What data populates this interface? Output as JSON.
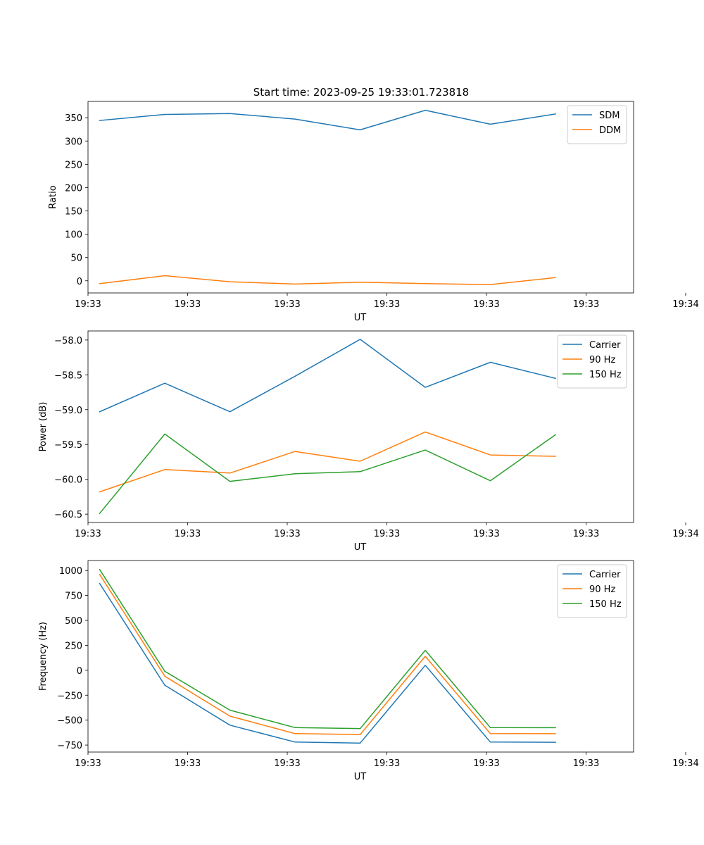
{
  "figure": {
    "title": "Start time: 2023-09-25 19:33:01.723818"
  },
  "colors": {
    "blue": "#1f77b4",
    "orange": "#ff7f0e",
    "green": "#2ca02c"
  },
  "chart_data": [
    {
      "type": "line",
      "name": "ratio",
      "title": "Start time: 2023-09-25 19:33:01.723818",
      "xlabel": "UT",
      "ylabel": "Ratio",
      "x": [
        1,
        2,
        3,
        4,
        5,
        6,
        7,
        8
      ],
      "xlim": [
        0.82,
        9.2
      ],
      "xticks": [
        0.82,
        2.35,
        3.88,
        5.41,
        6.94,
        8.47,
        10.0
      ],
      "xtick_labels": [
        "19:33",
        "19:33",
        "19:33",
        "19:33",
        "19:33",
        "19:33",
        "19:34"
      ],
      "ylim": [
        -26,
        385
      ],
      "yticks": [
        0,
        50,
        100,
        150,
        200,
        250,
        300,
        350
      ],
      "ytick_labels": [
        "0",
        "50",
        "100",
        "150",
        "200",
        "250",
        "300",
        "350"
      ],
      "legend_position": "top-right",
      "series": [
        {
          "name": "SDM",
          "color": "#1f77b4",
          "values": [
            344,
            357,
            359,
            347,
            324,
            366,
            336,
            358
          ]
        },
        {
          "name": "DDM",
          "color": "#ff7f0e",
          "values": [
            -6,
            11,
            -2,
            -7,
            -3,
            -6,
            -8,
            7
          ]
        }
      ]
    },
    {
      "type": "line",
      "name": "power",
      "title": "",
      "xlabel": "UT",
      "ylabel": "Power (dB)",
      "x": [
        1,
        2,
        3,
        4,
        5,
        6,
        7,
        8
      ],
      "xlim": [
        0.82,
        9.2
      ],
      "xticks": [
        0.82,
        2.35,
        3.88,
        5.41,
        6.94,
        8.47,
        10.0
      ],
      "xtick_labels": [
        "19:33",
        "19:33",
        "19:33",
        "19:33",
        "19:33",
        "19:33",
        "19:34"
      ],
      "ylim": [
        -60.62,
        -57.87
      ],
      "yticks": [
        -60.5,
        -60.0,
        -59.5,
        -59.0,
        -58.5,
        -58.0
      ],
      "ytick_labels": [
        "−60.5",
        "−60.0",
        "−59.5",
        "−59.0",
        "−58.5",
        "−58.0"
      ],
      "legend_position": "top-right",
      "series": [
        {
          "name": "Carrier",
          "color": "#1f77b4",
          "values": [
            -59.03,
            -58.62,
            -59.03,
            -58.52,
            -57.99,
            -58.68,
            -58.32,
            -58.55
          ]
        },
        {
          "name": "90 Hz",
          "color": "#ff7f0e",
          "values": [
            -60.18,
            -59.86,
            -59.91,
            -59.6,
            -59.74,
            -59.32,
            -59.65,
            -59.67
          ]
        },
        {
          "name": "150 Hz",
          "color": "#2ca02c",
          "values": [
            -60.49,
            -59.35,
            -60.03,
            -59.92,
            -59.89,
            -59.58,
            -60.02,
            -59.36
          ]
        }
      ]
    },
    {
      "type": "line",
      "name": "frequency",
      "title": "",
      "xlabel": "UT",
      "ylabel": "Frequency (Hz)",
      "x": [
        1,
        2,
        3,
        4,
        5,
        6,
        7,
        8
      ],
      "xlim": [
        0.82,
        9.2
      ],
      "xticks": [
        0.82,
        2.35,
        3.88,
        5.41,
        6.94,
        8.47,
        10.0
      ],
      "xtick_labels": [
        "19:33",
        "19:33",
        "19:33",
        "19:33",
        "19:33",
        "19:33",
        "19:34"
      ],
      "ylim": [
        -820,
        1100
      ],
      "yticks": [
        -750,
        -500,
        -250,
        0,
        250,
        500,
        750,
        1000
      ],
      "ytick_labels": [
        "−750",
        "−500",
        "−250",
        "0",
        "250",
        "500",
        "750",
        "1000"
      ],
      "legend_position": "top-right",
      "series": [
        {
          "name": "Carrier",
          "color": "#1f77b4",
          "values": [
            870,
            -150,
            -550,
            -720,
            -730,
            50,
            -720,
            -722
          ]
        },
        {
          "name": "90 Hz",
          "color": "#ff7f0e",
          "values": [
            960,
            -60,
            -460,
            -635,
            -645,
            140,
            -635,
            -636
          ]
        },
        {
          "name": "150 Hz",
          "color": "#2ca02c",
          "values": [
            1010,
            -10,
            -400,
            -575,
            -585,
            200,
            -575,
            -576
          ]
        }
      ]
    }
  ]
}
